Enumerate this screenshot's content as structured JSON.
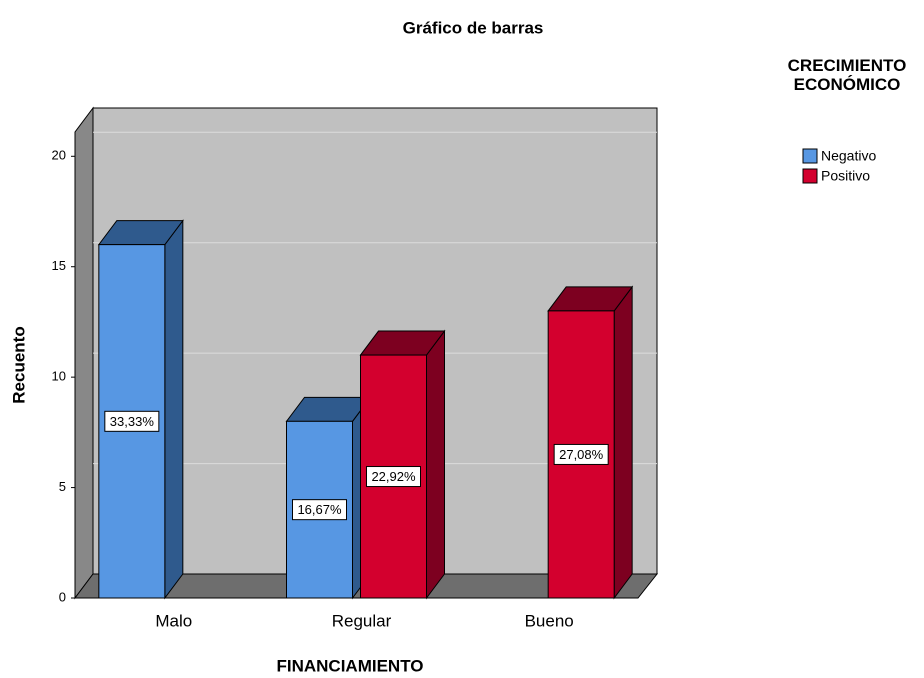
{
  "chart_data": {
    "type": "bar3d",
    "title": "Gráfico de barras",
    "x_label": "FINANCIAMIENTO",
    "y_label": "Recuento",
    "categories": [
      "Malo",
      "Regular",
      "Bueno"
    ],
    "legend_title": "CRECIMIENTO ECONÓMICO",
    "series": [
      {
        "name": "Negativo",
        "color": "#5797e3",
        "side_color": "#2f5a8d",
        "values": [
          16,
          8,
          null
        ],
        "percents": [
          33.33,
          16.67,
          null
        ],
        "percent_labels": [
          "33,33%",
          "16,67%",
          null
        ]
      },
      {
        "name": "Positivo",
        "color": "#d3002e",
        "side_color": "#7d0020",
        "values": [
          null,
          11,
          13
        ],
        "percents": [
          null,
          22.92,
          27.08
        ],
        "percent_labels": [
          null,
          "22,92%",
          "27,08%"
        ]
      }
    ],
    "ylim": [
      0,
      21.1
    ],
    "yticks": [
      0,
      5,
      10,
      15,
      20
    ],
    "grid": true,
    "legend": "top-right"
  }
}
